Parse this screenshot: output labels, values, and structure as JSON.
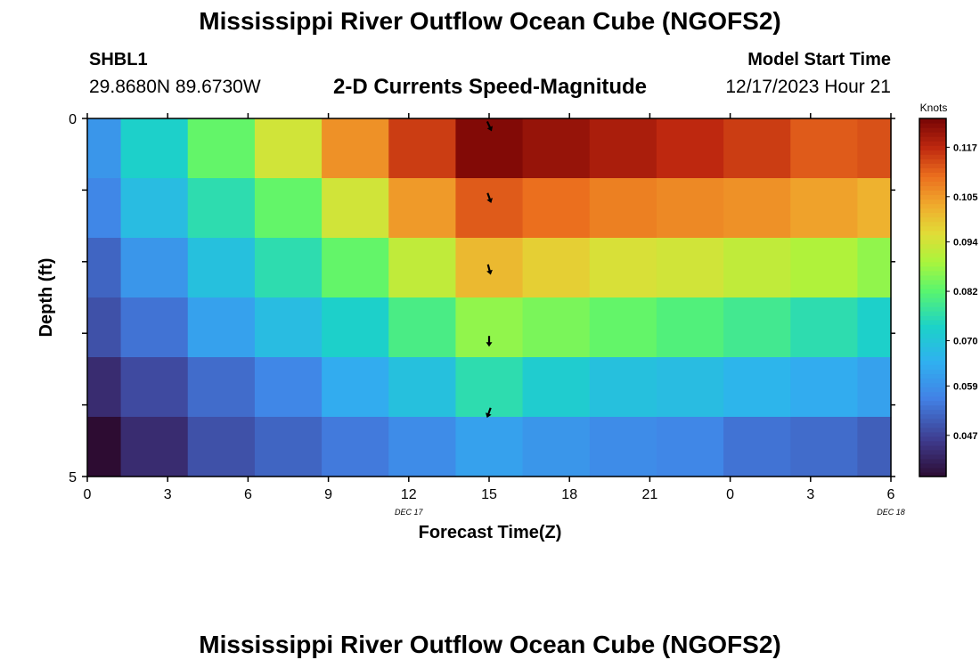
{
  "header": {
    "title": "Mississippi River Outflow Ocean Cube (NGOFS2)",
    "station": "SHBL1",
    "coordinates": "29.8680N  89.6730W",
    "subtitle": "2-D Currents Speed-Magnitude",
    "model_start_label": "Model Start Time",
    "model_start_value": "12/17/2023 Hour 21"
  },
  "footer": {
    "title": "Mississippi River Outflow Ocean Cube (NGOFS2)"
  },
  "chart_data": {
    "type": "heatmap",
    "title": "2-D Currents Speed-Magnitude",
    "xlabel": "Forecast Time(Z)",
    "ylabel": "Depth (ft)",
    "x_ticks": [
      "0",
      "3",
      "6",
      "9",
      "12",
      "15",
      "18",
      "21",
      "0",
      "3",
      "6"
    ],
    "date_labels": [
      {
        "text": "DEC 17",
        "at_tick": 4
      },
      {
        "text": "DEC 18",
        "at_tick": 10
      }
    ],
    "y_ticks": [
      "0",
      "5"
    ],
    "ylim": [
      0,
      5
    ],
    "colorbar": {
      "unit": "Knots",
      "ticks": [
        "0.117",
        "0.105",
        "0.094",
        "0.082",
        "0.070",
        "0.059",
        "0.047"
      ],
      "range": [
        0.037,
        0.124
      ]
    },
    "columns_hours": [
      0,
      2.5,
      5,
      7.5,
      10,
      12.5,
      15,
      17.5,
      20,
      22.5,
      25,
      27.5,
      30
    ],
    "rows_depth_ft": [
      0,
      1,
      2,
      3,
      4,
      5
    ],
    "values": [
      [
        0.06,
        0.073,
        0.083,
        0.094,
        0.106,
        0.115,
        0.123,
        0.121,
        0.119,
        0.117,
        0.115,
        0.112,
        0.113
      ],
      [
        0.057,
        0.068,
        0.076,
        0.083,
        0.094,
        0.105,
        0.112,
        0.11,
        0.108,
        0.107,
        0.106,
        0.104,
        0.102
      ],
      [
        0.052,
        0.06,
        0.069,
        0.076,
        0.083,
        0.092,
        0.101,
        0.098,
        0.095,
        0.094,
        0.092,
        0.09,
        0.087
      ],
      [
        0.049,
        0.054,
        0.062,
        0.068,
        0.073,
        0.08,
        0.087,
        0.085,
        0.083,
        0.081,
        0.079,
        0.076,
        0.073
      ],
      [
        0.043,
        0.048,
        0.053,
        0.057,
        0.064,
        0.069,
        0.076,
        0.072,
        0.069,
        0.068,
        0.066,
        0.064,
        0.062
      ],
      [
        0.037,
        0.043,
        0.049,
        0.052,
        0.055,
        0.058,
        0.062,
        0.06,
        0.058,
        0.057,
        0.054,
        0.053,
        0.051
      ]
    ],
    "arrows": [
      {
        "hour": 15,
        "depth_ft": 0,
        "angle_deg": 155
      },
      {
        "hour": 15,
        "depth_ft": 1,
        "angle_deg": 160
      },
      {
        "hour": 15,
        "depth_ft": 2,
        "angle_deg": 165
      },
      {
        "hour": 15,
        "depth_ft": 3,
        "angle_deg": 180
      },
      {
        "hour": 15,
        "depth_ft": 4,
        "angle_deg": 200
      }
    ]
  }
}
